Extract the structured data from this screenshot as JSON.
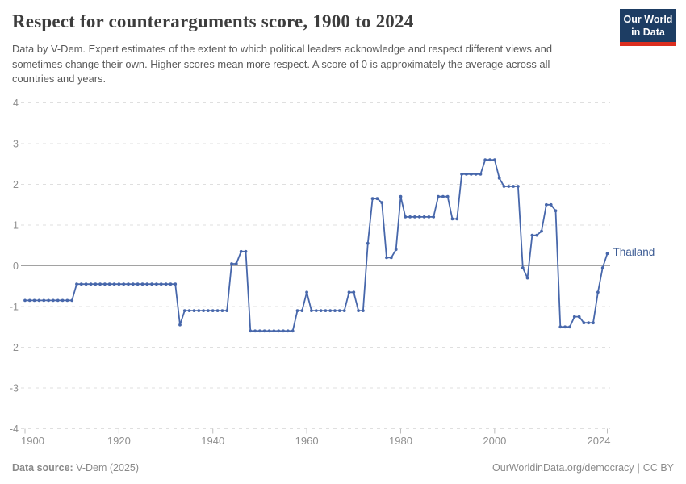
{
  "header": {
    "title": "Respect for counterarguments score, 1900 to 2024",
    "subtitle": "Data by V-Dem. Expert estimates of the extent to which political leaders acknowledge and respect different views and sometimes change their own. Higher scores mean more respect. A score of 0 is approximately the average across all countries and years.",
    "logo": {
      "line1": "Our World",
      "line2": "in Data",
      "bg_color": "#1d3d63",
      "stripe_color": "#dc2e1f"
    }
  },
  "chart_data": {
    "type": "line",
    "title": "Respect for counterarguments score, 1900 to 2024",
    "xlabel": "",
    "ylabel": "",
    "xlim": [
      1900,
      2024
    ],
    "ylim": [
      -4,
      4
    ],
    "yticks": [
      -4,
      -3,
      -2,
      -1,
      0,
      1,
      2,
      3,
      4
    ],
    "xticks": [
      1900,
      1920,
      1940,
      1960,
      1980,
      2000,
      2024
    ],
    "grid": "horizontal-dashed",
    "zero_line": true,
    "legend": "inline-end-label",
    "series": [
      {
        "name": "Thailand",
        "color": "#4767ab",
        "points": [
          [
            1900,
            -0.85
          ],
          [
            1901,
            -0.85
          ],
          [
            1902,
            -0.85
          ],
          [
            1903,
            -0.85
          ],
          [
            1904,
            -0.85
          ],
          [
            1905,
            -0.85
          ],
          [
            1906,
            -0.85
          ],
          [
            1907,
            -0.85
          ],
          [
            1908,
            -0.85
          ],
          [
            1909,
            -0.85
          ],
          [
            1910,
            -0.85
          ],
          [
            1911,
            -0.45
          ],
          [
            1912,
            -0.45
          ],
          [
            1913,
            -0.45
          ],
          [
            1914,
            -0.45
          ],
          [
            1915,
            -0.45
          ],
          [
            1916,
            -0.45
          ],
          [
            1917,
            -0.45
          ],
          [
            1918,
            -0.45
          ],
          [
            1919,
            -0.45
          ],
          [
            1920,
            -0.45
          ],
          [
            1921,
            -0.45
          ],
          [
            1922,
            -0.45
          ],
          [
            1923,
            -0.45
          ],
          [
            1924,
            -0.45
          ],
          [
            1925,
            -0.45
          ],
          [
            1926,
            -0.45
          ],
          [
            1927,
            -0.45
          ],
          [
            1928,
            -0.45
          ],
          [
            1929,
            -0.45
          ],
          [
            1930,
            -0.45
          ],
          [
            1931,
            -0.45
          ],
          [
            1932,
            -0.45
          ],
          [
            1933,
            -1.45
          ],
          [
            1934,
            -1.1
          ],
          [
            1935,
            -1.1
          ],
          [
            1936,
            -1.1
          ],
          [
            1937,
            -1.1
          ],
          [
            1938,
            -1.1
          ],
          [
            1939,
            -1.1
          ],
          [
            1940,
            -1.1
          ],
          [
            1941,
            -1.1
          ],
          [
            1942,
            -1.1
          ],
          [
            1943,
            -1.1
          ],
          [
            1944,
            0.05
          ],
          [
            1945,
            0.05
          ],
          [
            1946,
            0.35
          ],
          [
            1947,
            0.35
          ],
          [
            1948,
            -1.6
          ],
          [
            1949,
            -1.6
          ],
          [
            1950,
            -1.6
          ],
          [
            1951,
            -1.6
          ],
          [
            1952,
            -1.6
          ],
          [
            1953,
            -1.6
          ],
          [
            1954,
            -1.6
          ],
          [
            1955,
            -1.6
          ],
          [
            1956,
            -1.6
          ],
          [
            1957,
            -1.6
          ],
          [
            1958,
            -1.1
          ],
          [
            1959,
            -1.1
          ],
          [
            1960,
            -0.65
          ],
          [
            1961,
            -1.1
          ],
          [
            1962,
            -1.1
          ],
          [
            1963,
            -1.1
          ],
          [
            1964,
            -1.1
          ],
          [
            1965,
            -1.1
          ],
          [
            1966,
            -1.1
          ],
          [
            1967,
            -1.1
          ],
          [
            1968,
            -1.1
          ],
          [
            1969,
            -0.65
          ],
          [
            1970,
            -0.65
          ],
          [
            1971,
            -1.1
          ],
          [
            1972,
            -1.1
          ],
          [
            1973,
            0.55
          ],
          [
            1974,
            1.65
          ],
          [
            1975,
            1.65
          ],
          [
            1976,
            1.55
          ],
          [
            1977,
            0.2
          ],
          [
            1978,
            0.2
          ],
          [
            1979,
            0.4
          ],
          [
            1980,
            1.7
          ],
          [
            1981,
            1.2
          ],
          [
            1982,
            1.2
          ],
          [
            1983,
            1.2
          ],
          [
            1984,
            1.2
          ],
          [
            1985,
            1.2
          ],
          [
            1986,
            1.2
          ],
          [
            1987,
            1.2
          ],
          [
            1988,
            1.7
          ],
          [
            1989,
            1.7
          ],
          [
            1990,
            1.7
          ],
          [
            1991,
            1.15
          ],
          [
            1992,
            1.15
          ],
          [
            1993,
            2.25
          ],
          [
            1994,
            2.25
          ],
          [
            1995,
            2.25
          ],
          [
            1996,
            2.25
          ],
          [
            1997,
            2.25
          ],
          [
            1998,
            2.6
          ],
          [
            1999,
            2.6
          ],
          [
            2000,
            2.6
          ],
          [
            2001,
            2.15
          ],
          [
            2002,
            1.95
          ],
          [
            2003,
            1.95
          ],
          [
            2004,
            1.95
          ],
          [
            2005,
            1.95
          ],
          [
            2006,
            -0.05
          ],
          [
            2007,
            -0.3
          ],
          [
            2008,
            0.75
          ],
          [
            2009,
            0.75
          ],
          [
            2010,
            0.85
          ],
          [
            2011,
            1.5
          ],
          [
            2012,
            1.5
          ],
          [
            2013,
            1.35
          ],
          [
            2014,
            -1.5
          ],
          [
            2015,
            -1.5
          ],
          [
            2016,
            -1.5
          ],
          [
            2017,
            -1.25
          ],
          [
            2018,
            -1.25
          ],
          [
            2019,
            -1.4
          ],
          [
            2020,
            -1.4
          ],
          [
            2021,
            -1.4
          ],
          [
            2022,
            -0.65
          ],
          [
            2023,
            -0.05
          ],
          [
            2024,
            0.3
          ]
        ]
      }
    ]
  },
  "colors": {
    "grid": "#dfdfdf",
    "zero_line": "#a2a2a2",
    "axis_text": "#8f8f8f",
    "tick_mark": "#bdbdbd",
    "series_label": "#3d5c94"
  },
  "footer": {
    "source_label": "Data source:",
    "source_value": "V-Dem (2025)",
    "url": "OurWorldinData.org/democracy",
    "separator": "|",
    "license": "CC BY"
  }
}
